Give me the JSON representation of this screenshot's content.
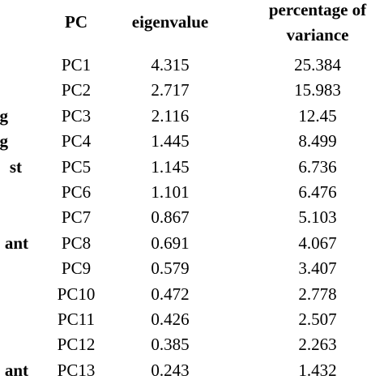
{
  "table": {
    "header": {
      "pc": "PC",
      "eigenvalue": "eigenvalue",
      "percentage_line1": "percentage of",
      "percentage_line2": "variance"
    },
    "rows": [
      {
        "pc": "PC1",
        "eigenvalue": 4.315,
        "percentage": 25.384
      },
      {
        "pc": "PC2",
        "eigenvalue": 2.717,
        "percentage": 15.983
      },
      {
        "label": "g",
        "pc": "PC3",
        "eigenvalue": 2.116,
        "percentage": 12.45
      },
      {
        "label": "g",
        "pc": "PC4",
        "eigenvalue": 1.445,
        "percentage": 8.499
      },
      {
        "label": "st",
        "pc": "PC5",
        "eigenvalue": 1.145,
        "percentage": 6.736
      },
      {
        "pc": "PC6",
        "eigenvalue": 1.101,
        "percentage": 6.476
      },
      {
        "pc": "PC7",
        "eigenvalue": 0.867,
        "percentage": 5.103
      },
      {
        "label": "ant",
        "pc": "PC8",
        "eigenvalue": 0.691,
        "percentage": 4.067
      },
      {
        "pc": "PC9",
        "eigenvalue": 0.579,
        "percentage": 3.407
      },
      {
        "pc": "PC10",
        "eigenvalue": 0.472,
        "percentage": 2.778
      },
      {
        "pc": "PC11",
        "eigenvalue": 0.426,
        "percentage": 2.507
      },
      {
        "pc": "PC12",
        "eigenvalue": 0.385,
        "percentage": 2.263
      },
      {
        "label": "ant",
        "pc": "PC13",
        "eigenvalue": 0.243,
        "percentage": 1.432
      }
    ]
  }
}
